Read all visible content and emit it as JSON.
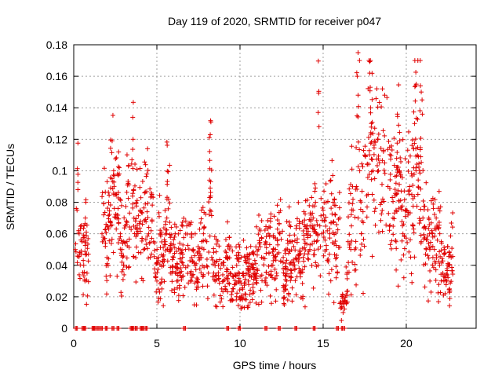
{
  "chart_data": {
    "type": "scatter",
    "title": "Day 119 of 2020, SRMTID for receiver p047",
    "xlabel": "GPS time / hours",
    "ylabel": "SRMTID / TECUs",
    "xlim": [
      0,
      24.2
    ],
    "ylim": [
      0,
      0.18
    ],
    "xticks": [
      0,
      5,
      10,
      15,
      20
    ],
    "xtick_labels": [
      "0",
      "5",
      "10",
      "15",
      "20"
    ],
    "yticks": [
      0,
      0.02,
      0.04,
      0.06,
      0.08,
      0.1,
      0.12,
      0.14,
      0.16,
      0.18
    ],
    "ytick_labels": [
      "0",
      "0.02",
      "0.04",
      "0.06",
      "0.08",
      "0.1",
      "0.12",
      "0.14",
      "0.16",
      "0.18"
    ],
    "grid": true,
    "marker": "plus",
    "color": "#e00000",
    "series": [
      {
        "name": "p047",
        "x": [
          0.1,
          0.2,
          0.25,
          0.3,
          0.35,
          0.5,
          0.6,
          0.7,
          0.8,
          1.7,
          1.8,
          1.9,
          2.0,
          2.1,
          2.2,
          2.3,
          2.4,
          2.5,
          2.6,
          2.7,
          2.8,
          2.9,
          3.0,
          3.1,
          3.2,
          3.5,
          3.6,
          3.8,
          4.0,
          4.2,
          4.4,
          4.5,
          4.6,
          4.7,
          4.8,
          4.9,
          5.0,
          5.1,
          5.2,
          5.3,
          5.4,
          5.5,
          5.6,
          5.7,
          5.8,
          5.9,
          6.0,
          6.1,
          6.2,
          6.4,
          6.6,
          6.8,
          7.0,
          7.2,
          7.4,
          7.6,
          7.8,
          8.0,
          8.1,
          8.2,
          8.3,
          8.5,
          8.7,
          8.9,
          9.0,
          9.2,
          9.4,
          9.6,
          9.8,
          10.0,
          10.1,
          10.2,
          10.3,
          10.5,
          10.7,
          10.9,
          11.1,
          11.3,
          11.5,
          11.7,
          11.9,
          12.0,
          12.2,
          12.4,
          12.6,
          12.8,
          13.0,
          13.2,
          13.4,
          13.6,
          13.8,
          14.0,
          14.2,
          14.4,
          14.6,
          14.7,
          14.8,
          15.0,
          15.2,
          15.4,
          15.6,
          15.8,
          16.0,
          16.1,
          16.2,
          16.3,
          16.5,
          16.7,
          16.8,
          16.9,
          17.0,
          17.1,
          17.2,
          17.3,
          17.5,
          17.7,
          17.9,
          18.0,
          18.1,
          18.3,
          18.5,
          18.7,
          18.9,
          19.0,
          19.2,
          19.4,
          19.6,
          19.8,
          20.0,
          20.2,
          20.4,
          20.5,
          20.6,
          20.7,
          20.8,
          20.9,
          21.0,
          21.2,
          21.4,
          21.6,
          21.8,
          22.0,
          22.1,
          22.2,
          22.3,
          22.4,
          22.5,
          22.6,
          22.7,
          2.35,
          2.55,
          8.25,
          8.15,
          14.7,
          14.75,
          17.05,
          17.1,
          17.8,
          17.85,
          18.7,
          20.85,
          20.9,
          20.95
        ],
        "y": [
          0.05,
          0.075,
          0.088,
          0.062,
          0.048,
          0.055,
          0.04,
          0.07,
          0.035,
          0.06,
          0.072,
          0.052,
          0.045,
          0.08,
          0.068,
          0.095,
          0.1,
          0.085,
          0.07,
          0.112,
          0.06,
          0.05,
          0.04,
          0.065,
          0.055,
          0.107,
          0.088,
          0.06,
          0.075,
          0.05,
          0.098,
          0.06,
          0.045,
          0.085,
          0.055,
          0.035,
          0.03,
          0.045,
          0.06,
          0.025,
          0.04,
          0.055,
          0.07,
          0.082,
          0.05,
          0.035,
          0.045,
          0.06,
          0.03,
          0.05,
          0.04,
          0.065,
          0.035,
          0.05,
          0.03,
          0.045,
          0.06,
          0.055,
          0.035,
          0.075,
          0.045,
          0.03,
          0.04,
          0.025,
          0.03,
          0.045,
          0.035,
          0.025,
          0.04,
          0.03,
          0.02,
          0.035,
          0.045,
          0.03,
          0.04,
          0.035,
          0.05,
          0.045,
          0.03,
          0.06,
          0.04,
          0.05,
          0.035,
          0.06,
          0.045,
          0.03,
          0.055,
          0.04,
          0.065,
          0.035,
          0.045,
          0.06,
          0.05,
          0.07,
          0.055,
          0.04,
          0.065,
          0.075,
          0.05,
          0.06,
          0.08,
          0.045,
          0.07,
          0.005,
          0.01,
          0.0,
          0.055,
          0.065,
          0.075,
          0.05,
          0.09,
          0.07,
          0.1,
          0.06,
          0.11,
          0.085,
          0.13,
          0.1,
          0.095,
          0.12,
          0.08,
          0.105,
          0.09,
          0.115,
          0.07,
          0.085,
          0.1,
          0.06,
          0.075,
          0.09,
          0.065,
          0.13,
          0.155,
          0.085,
          0.1,
          0.055,
          0.07,
          0.05,
          0.06,
          0.045,
          0.07,
          0.04,
          0.055,
          0.035,
          0.05,
          0.03,
          0.04,
          0.025,
          0.045,
          0.093,
          0.085,
          0.131,
          0.121,
          0.137,
          0.128,
          0.16,
          0.175,
          0.162,
          0.14,
          0.148,
          0.154,
          0.15,
          0.145
        ],
        "zero_x": [
          0.1,
          0.5,
          0.6,
          1.1,
          1.2,
          1.4,
          1.6,
          1.9,
          2.3,
          2.6,
          3.4,
          3.5,
          3.7,
          4.0,
          4.1,
          4.3,
          6.6,
          9.2,
          9.9,
          11.5,
          12.3,
          13.3,
          14.4,
          15.8,
          16.1
        ]
      }
    ]
  }
}
